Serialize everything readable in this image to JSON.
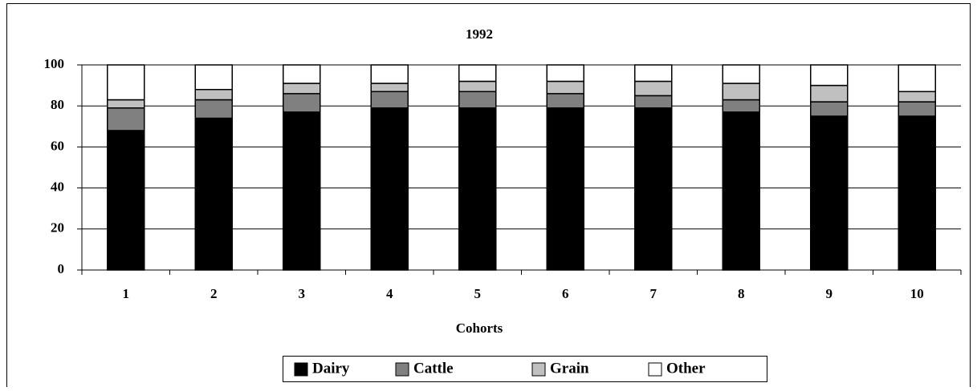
{
  "chart_data": {
    "type": "stacked_bar",
    "title": "1992",
    "x_label": "Cohorts",
    "categories": [
      "1",
      "2",
      "3",
      "4",
      "5",
      "6",
      "7",
      "8",
      "9",
      "10"
    ],
    "series": [
      {
        "name": "Dairy",
        "color": "#000000",
        "values": [
          68,
          74,
          77,
          79,
          79,
          79,
          79,
          77,
          75,
          75
        ]
      },
      {
        "name": "Cattle",
        "color": "#808080",
        "values": [
          11,
          9,
          9,
          8,
          8,
          7,
          6,
          6,
          7,
          7
        ]
      },
      {
        "name": "Grain",
        "color": "#c0c0c0",
        "values": [
          4,
          5,
          5,
          4,
          5,
          6,
          7,
          8,
          8,
          5
        ]
      },
      {
        "name": "Other",
        "color": "#ffffff",
        "values": [
          17,
          12,
          9,
          9,
          8,
          8,
          8,
          9,
          10,
          13
        ]
      }
    ],
    "ylim": [
      0,
      100
    ],
    "yticks": [
      0,
      20,
      40,
      60,
      80,
      100
    ],
    "grid": true,
    "legend": "bottom"
  }
}
